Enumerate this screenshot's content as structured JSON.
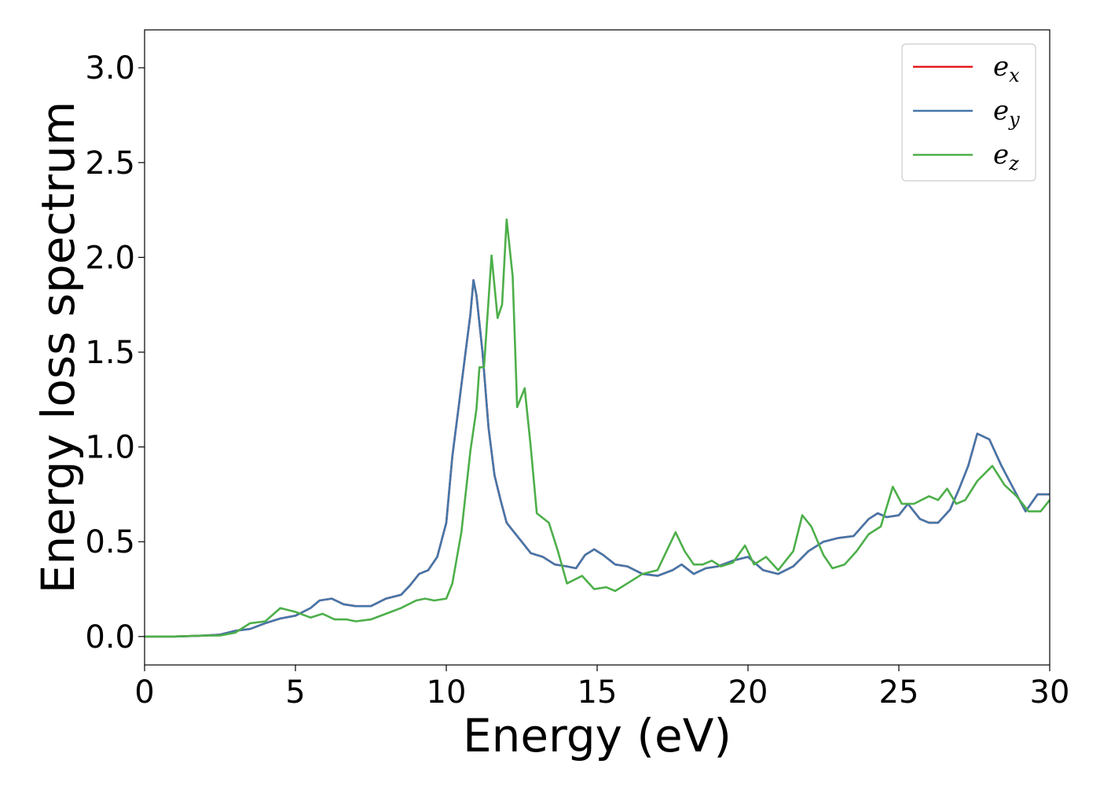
{
  "chart_data": {
    "type": "line",
    "title": "",
    "xlabel": "Energy (eV)",
    "ylabel": "Energy loss spectrum",
    "xlim": [
      0,
      30
    ],
    "ylim": [
      -0.15,
      3.2
    ],
    "xticks": [
      "0",
      "5",
      "10",
      "15",
      "20",
      "25",
      "30"
    ],
    "yticks": [
      "0.0",
      "0.5",
      "1.0",
      "1.5",
      "2.0",
      "2.5",
      "3.0"
    ],
    "grid": false,
    "legend_position": "top-right",
    "series": [
      {
        "name": "e_x",
        "legend_base": "e",
        "legend_sub": "x",
        "color": "#e41a1c",
        "points": [
          [
            0,
            0
          ],
          [
            1,
            0
          ],
          [
            2,
            0.005
          ],
          [
            2.5,
            0.01
          ],
          [
            3,
            0.03
          ],
          [
            3.5,
            0.04
          ],
          [
            4,
            0.07
          ],
          [
            4.5,
            0.095
          ],
          [
            5,
            0.11
          ],
          [
            5.5,
            0.15
          ],
          [
            5.8,
            0.19
          ],
          [
            6.2,
            0.2
          ],
          [
            6.6,
            0.17
          ],
          [
            7,
            0.16
          ],
          [
            7.5,
            0.16
          ],
          [
            8,
            0.2
          ],
          [
            8.5,
            0.22
          ],
          [
            8.8,
            0.27
          ],
          [
            9.1,
            0.33
          ],
          [
            9.4,
            0.35
          ],
          [
            9.7,
            0.42
          ],
          [
            10,
            0.6
          ],
          [
            10.2,
            0.95
          ],
          [
            10.4,
            1.2
          ],
          [
            10.6,
            1.45
          ],
          [
            10.8,
            1.7
          ],
          [
            10.9,
            1.88
          ],
          [
            11.0,
            1.8
          ],
          [
            11.2,
            1.5
          ],
          [
            11.4,
            1.1
          ],
          [
            11.6,
            0.85
          ],
          [
            11.8,
            0.72
          ],
          [
            12.0,
            0.6
          ],
          [
            12.2,
            0.56
          ],
          [
            12.5,
            0.5
          ],
          [
            12.8,
            0.44
          ],
          [
            13.2,
            0.42
          ],
          [
            13.6,
            0.38
          ],
          [
            14,
            0.37
          ],
          [
            14.3,
            0.36
          ],
          [
            14.6,
            0.43
          ],
          [
            14.9,
            0.46
          ],
          [
            15.2,
            0.43
          ],
          [
            15.6,
            0.38
          ],
          [
            16,
            0.37
          ],
          [
            16.5,
            0.33
          ],
          [
            17,
            0.32
          ],
          [
            17.5,
            0.35
          ],
          [
            17.8,
            0.38
          ],
          [
            18.2,
            0.33
          ],
          [
            18.6,
            0.36
          ],
          [
            19,
            0.37
          ],
          [
            19.5,
            0.4
          ],
          [
            20,
            0.42
          ],
          [
            20.5,
            0.35
          ],
          [
            21,
            0.33
          ],
          [
            21.5,
            0.37
          ],
          [
            22,
            0.45
          ],
          [
            22.5,
            0.5
          ],
          [
            23,
            0.52
          ],
          [
            23.5,
            0.53
          ],
          [
            24,
            0.62
          ],
          [
            24.3,
            0.65
          ],
          [
            24.6,
            0.63
          ],
          [
            25,
            0.64
          ],
          [
            25.3,
            0.7
          ],
          [
            25.7,
            0.62
          ],
          [
            26,
            0.6
          ],
          [
            26.3,
            0.6
          ],
          [
            26.7,
            0.67
          ],
          [
            27,
            0.78
          ],
          [
            27.3,
            0.9
          ],
          [
            27.6,
            1.07
          ],
          [
            28,
            1.04
          ],
          [
            28.4,
            0.9
          ],
          [
            28.8,
            0.78
          ],
          [
            29.2,
            0.66
          ],
          [
            29.6,
            0.75
          ],
          [
            30,
            0.75
          ]
        ]
      },
      {
        "name": "e_y",
        "legend_base": "e",
        "legend_sub": "y",
        "color": "#4477aa",
        "points": [
          [
            0,
            0
          ],
          [
            1,
            0
          ],
          [
            2,
            0.005
          ],
          [
            2.5,
            0.01
          ],
          [
            3,
            0.03
          ],
          [
            3.5,
            0.04
          ],
          [
            4,
            0.07
          ],
          [
            4.5,
            0.095
          ],
          [
            5,
            0.11
          ],
          [
            5.5,
            0.15
          ],
          [
            5.8,
            0.19
          ],
          [
            6.2,
            0.2
          ],
          [
            6.6,
            0.17
          ],
          [
            7,
            0.16
          ],
          [
            7.5,
            0.16
          ],
          [
            8,
            0.2
          ],
          [
            8.5,
            0.22
          ],
          [
            8.8,
            0.27
          ],
          [
            9.1,
            0.33
          ],
          [
            9.4,
            0.35
          ],
          [
            9.7,
            0.42
          ],
          [
            10,
            0.6
          ],
          [
            10.2,
            0.95
          ],
          [
            10.4,
            1.2
          ],
          [
            10.6,
            1.45
          ],
          [
            10.8,
            1.7
          ],
          [
            10.9,
            1.88
          ],
          [
            11.0,
            1.8
          ],
          [
            11.2,
            1.5
          ],
          [
            11.4,
            1.1
          ],
          [
            11.6,
            0.85
          ],
          [
            11.8,
            0.72
          ],
          [
            12.0,
            0.6
          ],
          [
            12.2,
            0.56
          ],
          [
            12.5,
            0.5
          ],
          [
            12.8,
            0.44
          ],
          [
            13.2,
            0.42
          ],
          [
            13.6,
            0.38
          ],
          [
            14,
            0.37
          ],
          [
            14.3,
            0.36
          ],
          [
            14.6,
            0.43
          ],
          [
            14.9,
            0.46
          ],
          [
            15.2,
            0.43
          ],
          [
            15.6,
            0.38
          ],
          [
            16,
            0.37
          ],
          [
            16.5,
            0.33
          ],
          [
            17,
            0.32
          ],
          [
            17.5,
            0.35
          ],
          [
            17.8,
            0.38
          ],
          [
            18.2,
            0.33
          ],
          [
            18.6,
            0.36
          ],
          [
            19,
            0.37
          ],
          [
            19.5,
            0.4
          ],
          [
            20,
            0.42
          ],
          [
            20.5,
            0.35
          ],
          [
            21,
            0.33
          ],
          [
            21.5,
            0.37
          ],
          [
            22,
            0.45
          ],
          [
            22.5,
            0.5
          ],
          [
            23,
            0.52
          ],
          [
            23.5,
            0.53
          ],
          [
            24,
            0.62
          ],
          [
            24.3,
            0.65
          ],
          [
            24.6,
            0.63
          ],
          [
            25,
            0.64
          ],
          [
            25.3,
            0.7
          ],
          [
            25.7,
            0.62
          ],
          [
            26,
            0.6
          ],
          [
            26.3,
            0.6
          ],
          [
            26.7,
            0.67
          ],
          [
            27,
            0.78
          ],
          [
            27.3,
            0.9
          ],
          [
            27.6,
            1.07
          ],
          [
            28,
            1.04
          ],
          [
            28.4,
            0.9
          ],
          [
            28.8,
            0.78
          ],
          [
            29.2,
            0.66
          ],
          [
            29.6,
            0.75
          ],
          [
            30,
            0.75
          ]
        ]
      },
      {
        "name": "e_z",
        "legend_base": "e",
        "legend_sub": "z",
        "color": "#4daf4a",
        "points": [
          [
            0,
            0
          ],
          [
            1,
            0
          ],
          [
            2,
            0.005
          ],
          [
            2.5,
            0.005
          ],
          [
            3,
            0.02
          ],
          [
            3.5,
            0.07
          ],
          [
            4,
            0.08
          ],
          [
            4.5,
            0.15
          ],
          [
            5,
            0.13
          ],
          [
            5.5,
            0.1
          ],
          [
            5.9,
            0.12
          ],
          [
            6.3,
            0.09
          ],
          [
            6.7,
            0.09
          ],
          [
            7,
            0.08
          ],
          [
            7.5,
            0.09
          ],
          [
            8,
            0.12
          ],
          [
            8.5,
            0.15
          ],
          [
            9,
            0.19
          ],
          [
            9.3,
            0.2
          ],
          [
            9.6,
            0.19
          ],
          [
            10,
            0.2
          ],
          [
            10.2,
            0.28
          ],
          [
            10.5,
            0.55
          ],
          [
            10.8,
            0.98
          ],
          [
            11.0,
            1.2
          ],
          [
            11.1,
            1.42
          ],
          [
            11.25,
            1.42
          ],
          [
            11.5,
            2.01
          ],
          [
            11.7,
            1.68
          ],
          [
            11.85,
            1.75
          ],
          [
            12.0,
            2.2
          ],
          [
            12.2,
            1.9
          ],
          [
            12.35,
            1.21
          ],
          [
            12.6,
            1.31
          ],
          [
            12.8,
            1.0
          ],
          [
            13.0,
            0.65
          ],
          [
            13.4,
            0.6
          ],
          [
            13.7,
            0.45
          ],
          [
            14.0,
            0.28
          ],
          [
            14.5,
            0.32
          ],
          [
            14.9,
            0.25
          ],
          [
            15.3,
            0.26
          ],
          [
            15.6,
            0.24
          ],
          [
            16,
            0.28
          ],
          [
            16.5,
            0.33
          ],
          [
            17,
            0.35
          ],
          [
            17.3,
            0.45
          ],
          [
            17.6,
            0.55
          ],
          [
            17.9,
            0.45
          ],
          [
            18.2,
            0.38
          ],
          [
            18.5,
            0.38
          ],
          [
            18.8,
            0.4
          ],
          [
            19.1,
            0.37
          ],
          [
            19.5,
            0.39
          ],
          [
            19.9,
            0.48
          ],
          [
            20.2,
            0.38
          ],
          [
            20.6,
            0.42
          ],
          [
            21,
            0.35
          ],
          [
            21.5,
            0.45
          ],
          [
            21.8,
            0.64
          ],
          [
            22.1,
            0.58
          ],
          [
            22.5,
            0.43
          ],
          [
            22.8,
            0.36
          ],
          [
            23.2,
            0.38
          ],
          [
            23.6,
            0.45
          ],
          [
            24,
            0.54
          ],
          [
            24.4,
            0.58
          ],
          [
            24.8,
            0.79
          ],
          [
            25.1,
            0.7
          ],
          [
            25.5,
            0.7
          ],
          [
            26,
            0.74
          ],
          [
            26.3,
            0.72
          ],
          [
            26.6,
            0.78
          ],
          [
            26.9,
            0.7
          ],
          [
            27.2,
            0.72
          ],
          [
            27.6,
            0.82
          ],
          [
            28.1,
            0.9
          ],
          [
            28.5,
            0.8
          ],
          [
            28.9,
            0.74
          ],
          [
            29.3,
            0.66
          ],
          [
            29.7,
            0.66
          ],
          [
            30,
            0.72
          ]
        ]
      }
    ]
  }
}
